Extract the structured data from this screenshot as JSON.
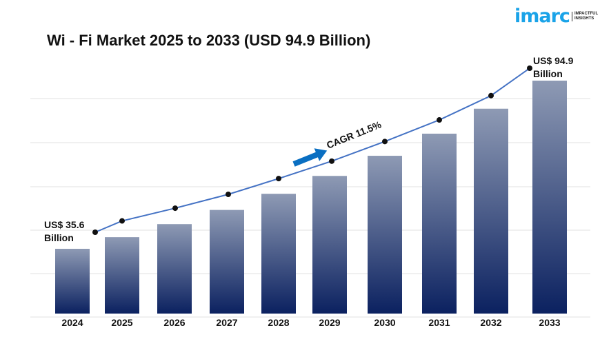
{
  "logo": {
    "word": "imarc",
    "tagline_1": "IMPACTFUL",
    "tagline_2": "INSIGHTS"
  },
  "chart_data": {
    "type": "bar",
    "title": "Wi - Fi Market 2025 to 2033 (USD 94.9 Billion)",
    "categories": [
      "2024",
      "2025",
      "2026",
      "2027",
      "2028",
      "2029",
      "2030",
      "2031",
      "2032",
      "2033"
    ],
    "values": [
      35.6,
      39.7,
      44.3,
      49.3,
      55.0,
      61.3,
      68.4,
      76.2,
      85.0,
      94.9
    ],
    "unit": "US$ Billion",
    "overlay_line": true,
    "grid": true,
    "annotations": {
      "start_label_1": "US$ 35.6",
      "start_label_2": "Billion",
      "end_label_1": "US$ 94.9",
      "end_label_2": "Billion",
      "cagr": "CAGR 11.5%"
    },
    "colors": {
      "bar_top": "#8e9ab4",
      "bar_bottom": "#0b2160",
      "line": "#4472c4",
      "arrow": "#0a6fc2",
      "logo": "#1aa3e8"
    }
  }
}
